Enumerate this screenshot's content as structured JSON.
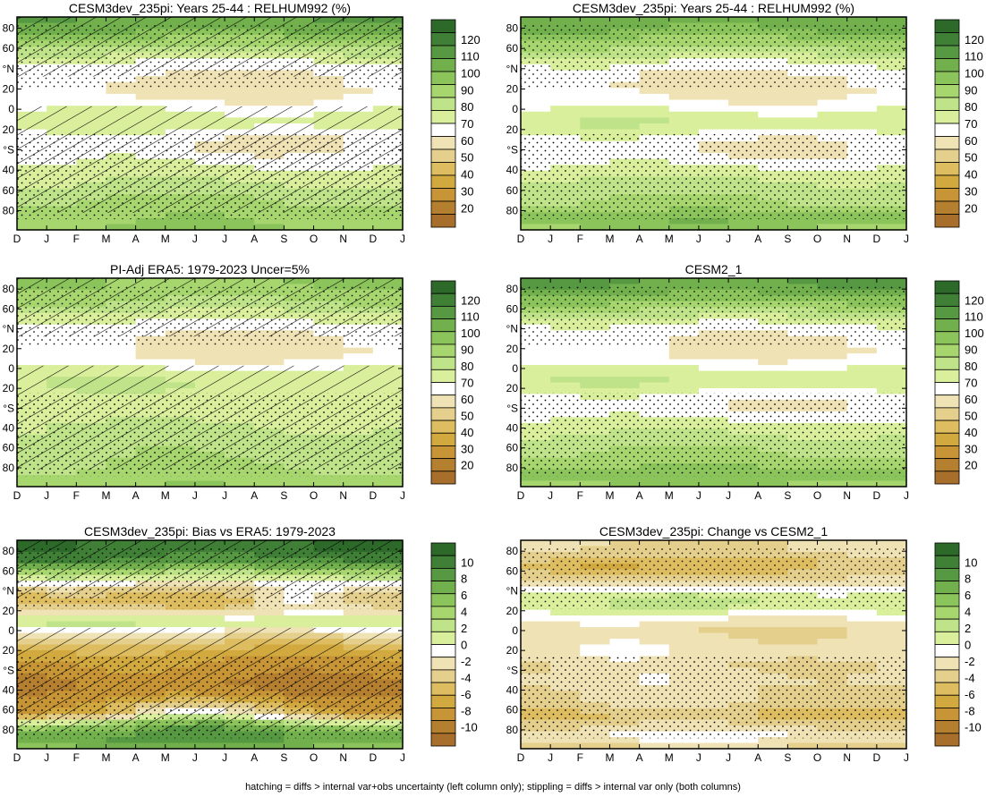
{
  "footnote": "hatching = diffs > internal var+obs uncertainty (left column only); stippling = diffs > internal var only (both columns)",
  "colors": {
    "abs_levels": [
      "#a86f2c",
      "#b57f30",
      "#c79535",
      "#d2a93f",
      "#ddbd60",
      "#e5cf8c",
      "#efe2b5",
      "#ffffff",
      "#d9ef9c",
      "#bfe389",
      "#a7d66f",
      "#8cc45c",
      "#72b04d",
      "#579842",
      "#3f7f36",
      "#2d6a2a"
    ],
    "diff_levels": [
      "#a86f2c",
      "#b57f30",
      "#c79535",
      "#d2a93f",
      "#ddbd60",
      "#e5cf8c",
      "#efe2b5",
      "#ffffff",
      "#d9ef9c",
      "#bfe389",
      "#a7d66f",
      "#8cc45c",
      "#72b04d",
      "#579842",
      "#3f7f36",
      "#2d6a2a"
    ],
    "frame": "#000000",
    "stipple": "#000000",
    "hatch": "#000000"
  },
  "chart_data": [
    {
      "id": "p1",
      "type": "heatmap",
      "title": "CESM3dev_235pi: Years 25-44 : RELHUM992 (%)",
      "x_tick_labels": [
        "D",
        "J",
        "F",
        "M",
        "A",
        "M",
        "J",
        "J",
        "A",
        "S",
        "O",
        "N",
        "D",
        "J"
      ],
      "y_tick_labels": [
        "80",
        "60",
        "°N",
        "20",
        "0",
        "20",
        "°S",
        "40",
        "60",
        "80"
      ],
      "ylim": [
        -90,
        90
      ],
      "colorbar_labels": [
        "120",
        "110",
        "100",
        "90",
        "80",
        "70",
        "60",
        "50",
        "40",
        "30",
        "20"
      ],
      "colorbar_kind": "abs",
      "hatching": true,
      "stippling": true,
      "lat_profile": [
        [
          -90,
          98
        ],
        [
          -80,
          96
        ],
        [
          -70,
          92
        ],
        [
          -60,
          88
        ],
        [
          -50,
          82
        ],
        [
          -40,
          78
        ],
        [
          -30,
          74
        ],
        [
          -20,
          70
        ],
        [
          -10,
          72
        ],
        [
          0,
          80
        ],
        [
          10,
          76
        ],
        [
          20,
          68
        ],
        [
          30,
          66
        ],
        [
          40,
          68
        ],
        [
          50,
          72
        ],
        [
          60,
          84
        ],
        [
          70,
          96
        ],
        [
          80,
          108
        ],
        [
          90,
          112
        ]
      ],
      "anomalies": [
        {
          "lat": -20,
          "month": 7,
          "amp": -6,
          "width": 3
        },
        {
          "lat": 30,
          "month": 4,
          "amp": -4,
          "width": 2
        }
      ]
    },
    {
      "id": "p2",
      "type": "heatmap",
      "title": "CESM3dev_235pi: Years 25-44 : RELHUM992 (%)",
      "x_tick_labels": [
        "D",
        "J",
        "F",
        "M",
        "A",
        "M",
        "J",
        "J",
        "A",
        "S",
        "O",
        "N",
        "D",
        "J"
      ],
      "y_tick_labels": [
        "80",
        "60",
        "°N",
        "20",
        "0",
        "20",
        "°S",
        "40",
        "60",
        "80"
      ],
      "ylim": [
        -90,
        90
      ],
      "colorbar_labels": [
        "120",
        "110",
        "100",
        "90",
        "80",
        "70",
        "60",
        "50",
        "40",
        "30",
        "20"
      ],
      "colorbar_kind": "abs",
      "hatching": false,
      "stippling": true,
      "lat_profile": [
        [
          -90,
          98
        ],
        [
          -80,
          104
        ],
        [
          -70,
          92
        ],
        [
          -60,
          88
        ],
        [
          -50,
          84
        ],
        [
          -40,
          78
        ],
        [
          -30,
          72
        ],
        [
          -20,
          70
        ],
        [
          -10,
          74
        ],
        [
          0,
          82
        ],
        [
          10,
          76
        ],
        [
          20,
          68
        ],
        [
          30,
          66
        ],
        [
          40,
          68
        ],
        [
          50,
          74
        ],
        [
          60,
          86
        ],
        [
          70,
          96
        ],
        [
          80,
          106
        ],
        [
          90,
          110
        ]
      ],
      "anomalies": [
        {
          "lat": -20,
          "month": 7,
          "amp": -6,
          "width": 3
        },
        {
          "lat": 35,
          "month": 5,
          "amp": -5,
          "width": 2
        }
      ]
    },
    {
      "id": "p3",
      "type": "heatmap",
      "title": "PI-Adj ERA5: 1979-2023 Uncer=5%",
      "x_tick_labels": [
        "D",
        "J",
        "F",
        "M",
        "A",
        "M",
        "J",
        "J",
        "A",
        "S",
        "O",
        "N",
        "D",
        "J"
      ],
      "y_tick_labels": [
        "80",
        "60",
        "°N",
        "20",
        "0",
        "20",
        "°S",
        "40",
        "60",
        "80"
      ],
      "ylim": [
        -90,
        90
      ],
      "colorbar_labels": [
        "120",
        "110",
        "100",
        "90",
        "80",
        "70",
        "60",
        "50",
        "40",
        "30",
        "20"
      ],
      "colorbar_kind": "abs",
      "hatching": true,
      "stippling": true,
      "lat_profile": [
        [
          -90,
          96
        ],
        [
          -80,
          92
        ],
        [
          -70,
          90
        ],
        [
          -60,
          88
        ],
        [
          -50,
          86
        ],
        [
          -40,
          84
        ],
        [
          -30,
          80
        ],
        [
          -20,
          78
        ],
        [
          -10,
          80
        ],
        [
          0,
          82
        ],
        [
          10,
          78
        ],
        [
          20,
          68
        ],
        [
          30,
          66
        ],
        [
          40,
          68
        ],
        [
          50,
          72
        ],
        [
          60,
          82
        ],
        [
          70,
          90
        ],
        [
          80,
          96
        ],
        [
          90,
          98
        ]
      ],
      "anomalies": [
        {
          "lat": 25,
          "month": 5,
          "amp": -4,
          "width": 2
        }
      ]
    },
    {
      "id": "p4",
      "type": "heatmap",
      "title": "CESM2_1",
      "x_tick_labels": [
        "D",
        "J",
        "F",
        "M",
        "A",
        "M",
        "J",
        "J",
        "A",
        "S",
        "O",
        "N",
        "D",
        "J"
      ],
      "y_tick_labels": [
        "80",
        "60",
        "°N",
        "20",
        "0",
        "20",
        "°S",
        "40",
        "60",
        "80"
      ],
      "ylim": [
        -90,
        90
      ],
      "colorbar_labels": [
        "120",
        "110",
        "100",
        "90",
        "80",
        "70",
        "60",
        "50",
        "40",
        "30",
        "20"
      ],
      "colorbar_kind": "abs",
      "hatching": false,
      "stippling": true,
      "lat_profile": [
        [
          -90,
          96
        ],
        [
          -80,
          104
        ],
        [
          -70,
          94
        ],
        [
          -60,
          90
        ],
        [
          -50,
          86
        ],
        [
          -40,
          80
        ],
        [
          -30,
          74
        ],
        [
          -20,
          70
        ],
        [
          -10,
          74
        ],
        [
          0,
          82
        ],
        [
          10,
          78
        ],
        [
          20,
          68
        ],
        [
          30,
          66
        ],
        [
          40,
          68
        ],
        [
          50,
          74
        ],
        [
          60,
          88
        ],
        [
          70,
          98
        ],
        [
          80,
          110
        ],
        [
          90,
          114
        ]
      ],
      "anomalies": [
        {
          "lat": -20,
          "month": 7,
          "amp": -4,
          "width": 3
        }
      ]
    },
    {
      "id": "p5",
      "type": "heatmap",
      "title": "CESM3dev_235pi: Bias vs ERA5: 1979-2023",
      "x_tick_labels": [
        "D",
        "J",
        "F",
        "M",
        "A",
        "M",
        "J",
        "J",
        "A",
        "S",
        "O",
        "N",
        "D",
        "J"
      ],
      "y_tick_labels": [
        "80",
        "60",
        "°N",
        "20",
        "0",
        "20",
        "°S",
        "40",
        "60",
        "80"
      ],
      "ylim": [
        -90,
        90
      ],
      "colorbar_labels": [
        "10",
        "8",
        "6",
        "4",
        "2",
        "0",
        "-2",
        "-4",
        "-6",
        "-8",
        "-10"
      ],
      "colorbar_kind": "diff",
      "hatching": true,
      "stippling": true,
      "lat_profile": [
        [
          -90,
          6
        ],
        [
          -80,
          8
        ],
        [
          -70,
          4
        ],
        [
          -60,
          -7
        ],
        [
          -50,
          -8
        ],
        [
          -40,
          -9
        ],
        [
          -30,
          -9
        ],
        [
          -20,
          -8
        ],
        [
          -10,
          -7
        ],
        [
          0,
          -5
        ],
        [
          10,
          -2
        ],
        [
          20,
          2
        ],
        [
          30,
          -4
        ],
        [
          40,
          -6
        ],
        [
          50,
          -3
        ],
        [
          60,
          2
        ],
        [
          70,
          8
        ],
        [
          80,
          10
        ],
        [
          90,
          10
        ]
      ],
      "anomalies": [
        {
          "lat": 40,
          "month": 9,
          "amp": 5,
          "width": 2
        },
        {
          "lat": -60,
          "month": 6,
          "amp": 6,
          "width": 3
        }
      ]
    },
    {
      "id": "p6",
      "type": "heatmap",
      "title": "CESM3dev_235pi: Change vs CESM2_1",
      "x_tick_labels": [
        "D",
        "J",
        "F",
        "M",
        "A",
        "M",
        "J",
        "J",
        "A",
        "S",
        "O",
        "N",
        "D",
        "J"
      ],
      "y_tick_labels": [
        "80",
        "60",
        "°N",
        "20",
        "0",
        "20",
        "°S",
        "40",
        "60",
        "80"
      ],
      "ylim": [
        -90,
        90
      ],
      "colorbar_labels": [
        "10",
        "8",
        "6",
        "4",
        "2",
        "0",
        "-2",
        "-4",
        "-6",
        "-8",
        "-10"
      ],
      "colorbar_kind": "diff",
      "hatching": false,
      "stippling": true,
      "lat_profile": [
        [
          -90,
          -4
        ],
        [
          -80,
          -1
        ],
        [
          -70,
          -3
        ],
        [
          -60,
          -5
        ],
        [
          -50,
          -3
        ],
        [
          -40,
          -3
        ],
        [
          -30,
          -2
        ],
        [
          -20,
          -3
        ],
        [
          -10,
          -2
        ],
        [
          0,
          -2
        ],
        [
          10,
          -3
        ],
        [
          20,
          -2
        ],
        [
          30,
          0
        ],
        [
          40,
          0
        ],
        [
          50,
          -2
        ],
        [
          60,
          -4
        ],
        [
          70,
          -5
        ],
        [
          80,
          -3
        ],
        [
          90,
          -3
        ]
      ],
      "anomalies": [
        {
          "lat": 38,
          "month": 6,
          "amp": 3,
          "width": 3
        },
        {
          "lat": 70,
          "month": 2,
          "amp": -2,
          "width": 2
        }
      ]
    }
  ]
}
